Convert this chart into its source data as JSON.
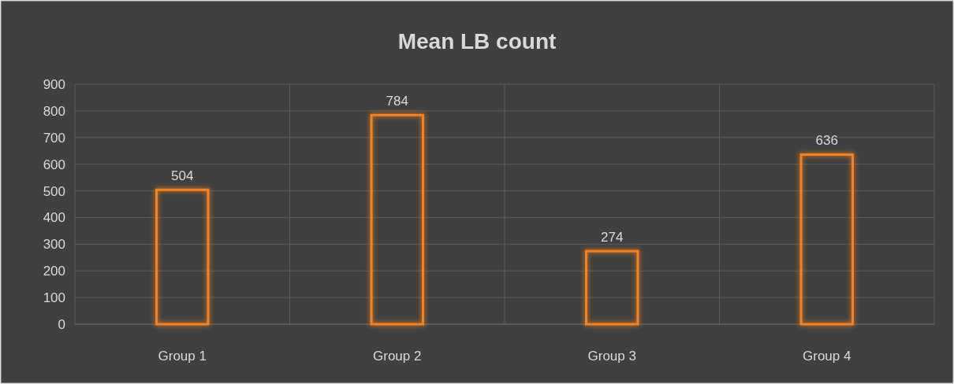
{
  "chart_data": {
    "type": "bar",
    "title": "Mean LB count",
    "categories": [
      "Group 1",
      "Group 2",
      "Group 3",
      "Group 4"
    ],
    "values": [
      504,
      784,
      274,
      636
    ],
    "color": "#f5821f",
    "ylim": [
      0,
      900
    ],
    "yticks": [
      0,
      100,
      200,
      300,
      400,
      500,
      600,
      700,
      800,
      900
    ],
    "grid": true,
    "data_labels": true
  }
}
